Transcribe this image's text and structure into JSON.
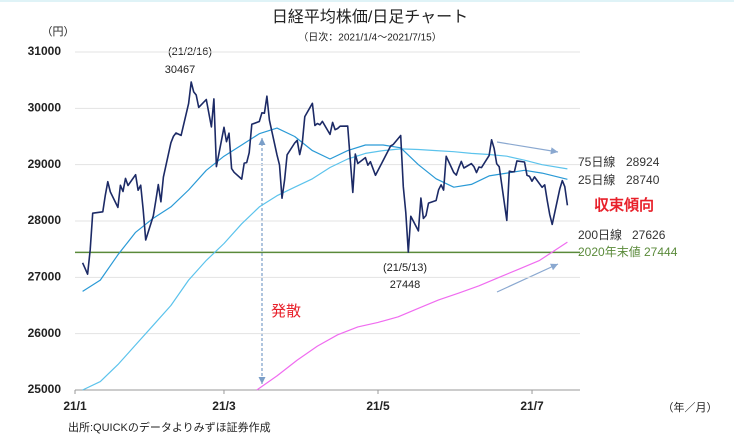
{
  "chart_data": {
    "type": "line",
    "title": "日経平均株価/日足チャート",
    "subtitle": "（日次：2021/1/4～2021/7/15）",
    "y_unit": "（円）",
    "x_unit": "（年／月）",
    "source": "出所:QUICKのデータよりみずほ証券作成",
    "xlim": [
      0,
      200
    ],
    "xticks": [
      {
        "value": 0,
        "label": "21/1"
      },
      {
        "value": 59,
        "label": "21/3"
      },
      {
        "value": 120,
        "label": "21/5"
      },
      {
        "value": 181,
        "label": "21/7"
      }
    ],
    "ylim": [
      25000,
      31000
    ],
    "yticks": [
      25000,
      26000,
      27000,
      28000,
      29000,
      30000,
      31000
    ],
    "grid": true,
    "series": [
      {
        "color": "#1c2a66",
        "x": [
          3,
          4,
          5,
          6,
          7,
          11,
          12,
          13,
          14,
          17,
          18,
          19,
          20,
          21,
          24,
          25,
          26,
          27,
          28,
          31,
          32,
          33,
          34,
          35,
          38,
          39,
          40,
          42,
          45,
          46,
          47,
          48,
          49,
          52,
          54,
          55,
          56,
          59,
          60,
          61,
          62,
          63,
          66,
          67,
          68,
          69,
          70,
          73,
          74,
          75,
          76,
          77,
          80,
          81,
          82,
          83,
          84,
          87,
          88,
          89,
          90,
          91,
          94,
          95,
          96,
          97,
          98,
          101,
          102,
          103,
          104,
          105,
          108,
          109,
          110,
          111,
          112,
          115,
          116,
          117,
          119,
          125,
          126,
          129,
          130,
          131,
          132,
          133,
          136,
          137,
          138,
          139,
          140,
          143,
          144,
          145,
          146,
          147,
          150,
          151,
          152,
          153,
          154,
          157,
          158,
          159,
          160,
          161,
          164,
          165,
          166,
          167,
          168,
          171,
          172,
          173,
          174,
          175,
          178,
          179,
          180,
          181,
          182,
          185,
          186,
          187,
          188,
          189,
          192,
          193,
          194,
          195
        ],
        "values": [
          27258,
          27158,
          27056,
          27490,
          28139,
          28164,
          28456,
          28698,
          28519,
          28242,
          28633,
          28523,
          28756,
          28631,
          28822,
          28546,
          28635,
          28197,
          27663,
          28091,
          28362,
          28646,
          28341,
          28779,
          29388,
          29505,
          29562,
          29520,
          30084,
          30467,
          30292,
          30236,
          30017,
          30156,
          29671,
          30168,
          28966,
          29664,
          29408,
          29559,
          28930,
          28864,
          28743,
          29028,
          29036,
          29212,
          29717,
          29766,
          29921,
          29914,
          30216,
          29792,
          29174,
          28995,
          28405,
          28729,
          29176,
          29384,
          29432,
          29178,
          29388,
          29854,
          30089,
          29696,
          29730,
          29708,
          29768,
          29538,
          29751,
          29620,
          29642,
          29683,
          29685,
          29100,
          28508,
          29188,
          29020,
          29126,
          28991,
          29053,
          28812,
          29331,
          29357,
          29518,
          28608,
          28147,
          27448,
          28084,
          27824,
          28406,
          28044,
          28098,
          28317,
          28364,
          28553,
          28642,
          28549,
          29149,
          28860,
          28814,
          28946,
          29058,
          28941,
          29019,
          28963,
          28860,
          28958,
          28948,
          29161,
          29441,
          29291,
          29018,
          28964,
          28010,
          28884,
          28874,
          28875,
          29066,
          29048,
          28812,
          28791,
          28707,
          28783,
          28598,
          28643,
          28366,
          28118,
          27940,
          28569,
          28718,
          28608,
          28279
        ]
      },
      {
        "name": "75日線",
        "color": "#5cc3ec",
        "x": [
          3,
          10,
          17,
          24,
          31,
          38,
          45,
          52,
          59,
          66,
          73,
          80,
          87,
          94,
          101,
          108,
          115,
          122,
          129,
          136,
          143,
          150,
          157,
          164,
          171,
          178,
          185,
          195
        ],
        "values": [
          25000,
          25150,
          25450,
          25800,
          26150,
          26500,
          26950,
          27300,
          27600,
          27950,
          28250,
          28450,
          28600,
          28750,
          28950,
          29100,
          29200,
          29250,
          29280,
          29270,
          29250,
          29230,
          29200,
          29180,
          29150,
          29080,
          29000,
          28924
        ]
      },
      {
        "name": "25日線",
        "color": "#2a9ad6",
        "x": [
          3,
          10,
          17,
          24,
          31,
          38,
          45,
          52,
          59,
          66,
          73,
          80,
          87,
          94,
          101,
          108,
          115,
          122,
          129,
          136,
          143,
          150,
          157,
          164,
          171,
          178,
          185,
          195
        ],
        "values": [
          26750,
          26950,
          27400,
          27800,
          28050,
          28250,
          28550,
          28900,
          29150,
          29350,
          29550,
          29650,
          29500,
          29250,
          29100,
          29250,
          29350,
          29350,
          29300,
          29000,
          28750,
          28600,
          28650,
          28800,
          28850,
          28900,
          28850,
          28740
        ]
      },
      {
        "name": "200日線",
        "color": "#f06cf0",
        "x": [
          72,
          80,
          88,
          96,
          104,
          112,
          120,
          128,
          136,
          144,
          152,
          160,
          168,
          176,
          184,
          195
        ],
        "values": [
          25000,
          25250,
          25530,
          25780,
          25980,
          26120,
          26200,
          26300,
          26450,
          26600,
          26720,
          26850,
          27000,
          27150,
          27300,
          27626
        ]
      }
    ],
    "reference_line": {
      "name": "2020年末値",
      "value": 27444,
      "color": "#5a8a3a"
    },
    "annotations": {
      "peak_date": "(21/2/16)",
      "low_date": "(21/5/13)",
      "divergence": "発散",
      "convergence": "収束傾向"
    }
  }
}
